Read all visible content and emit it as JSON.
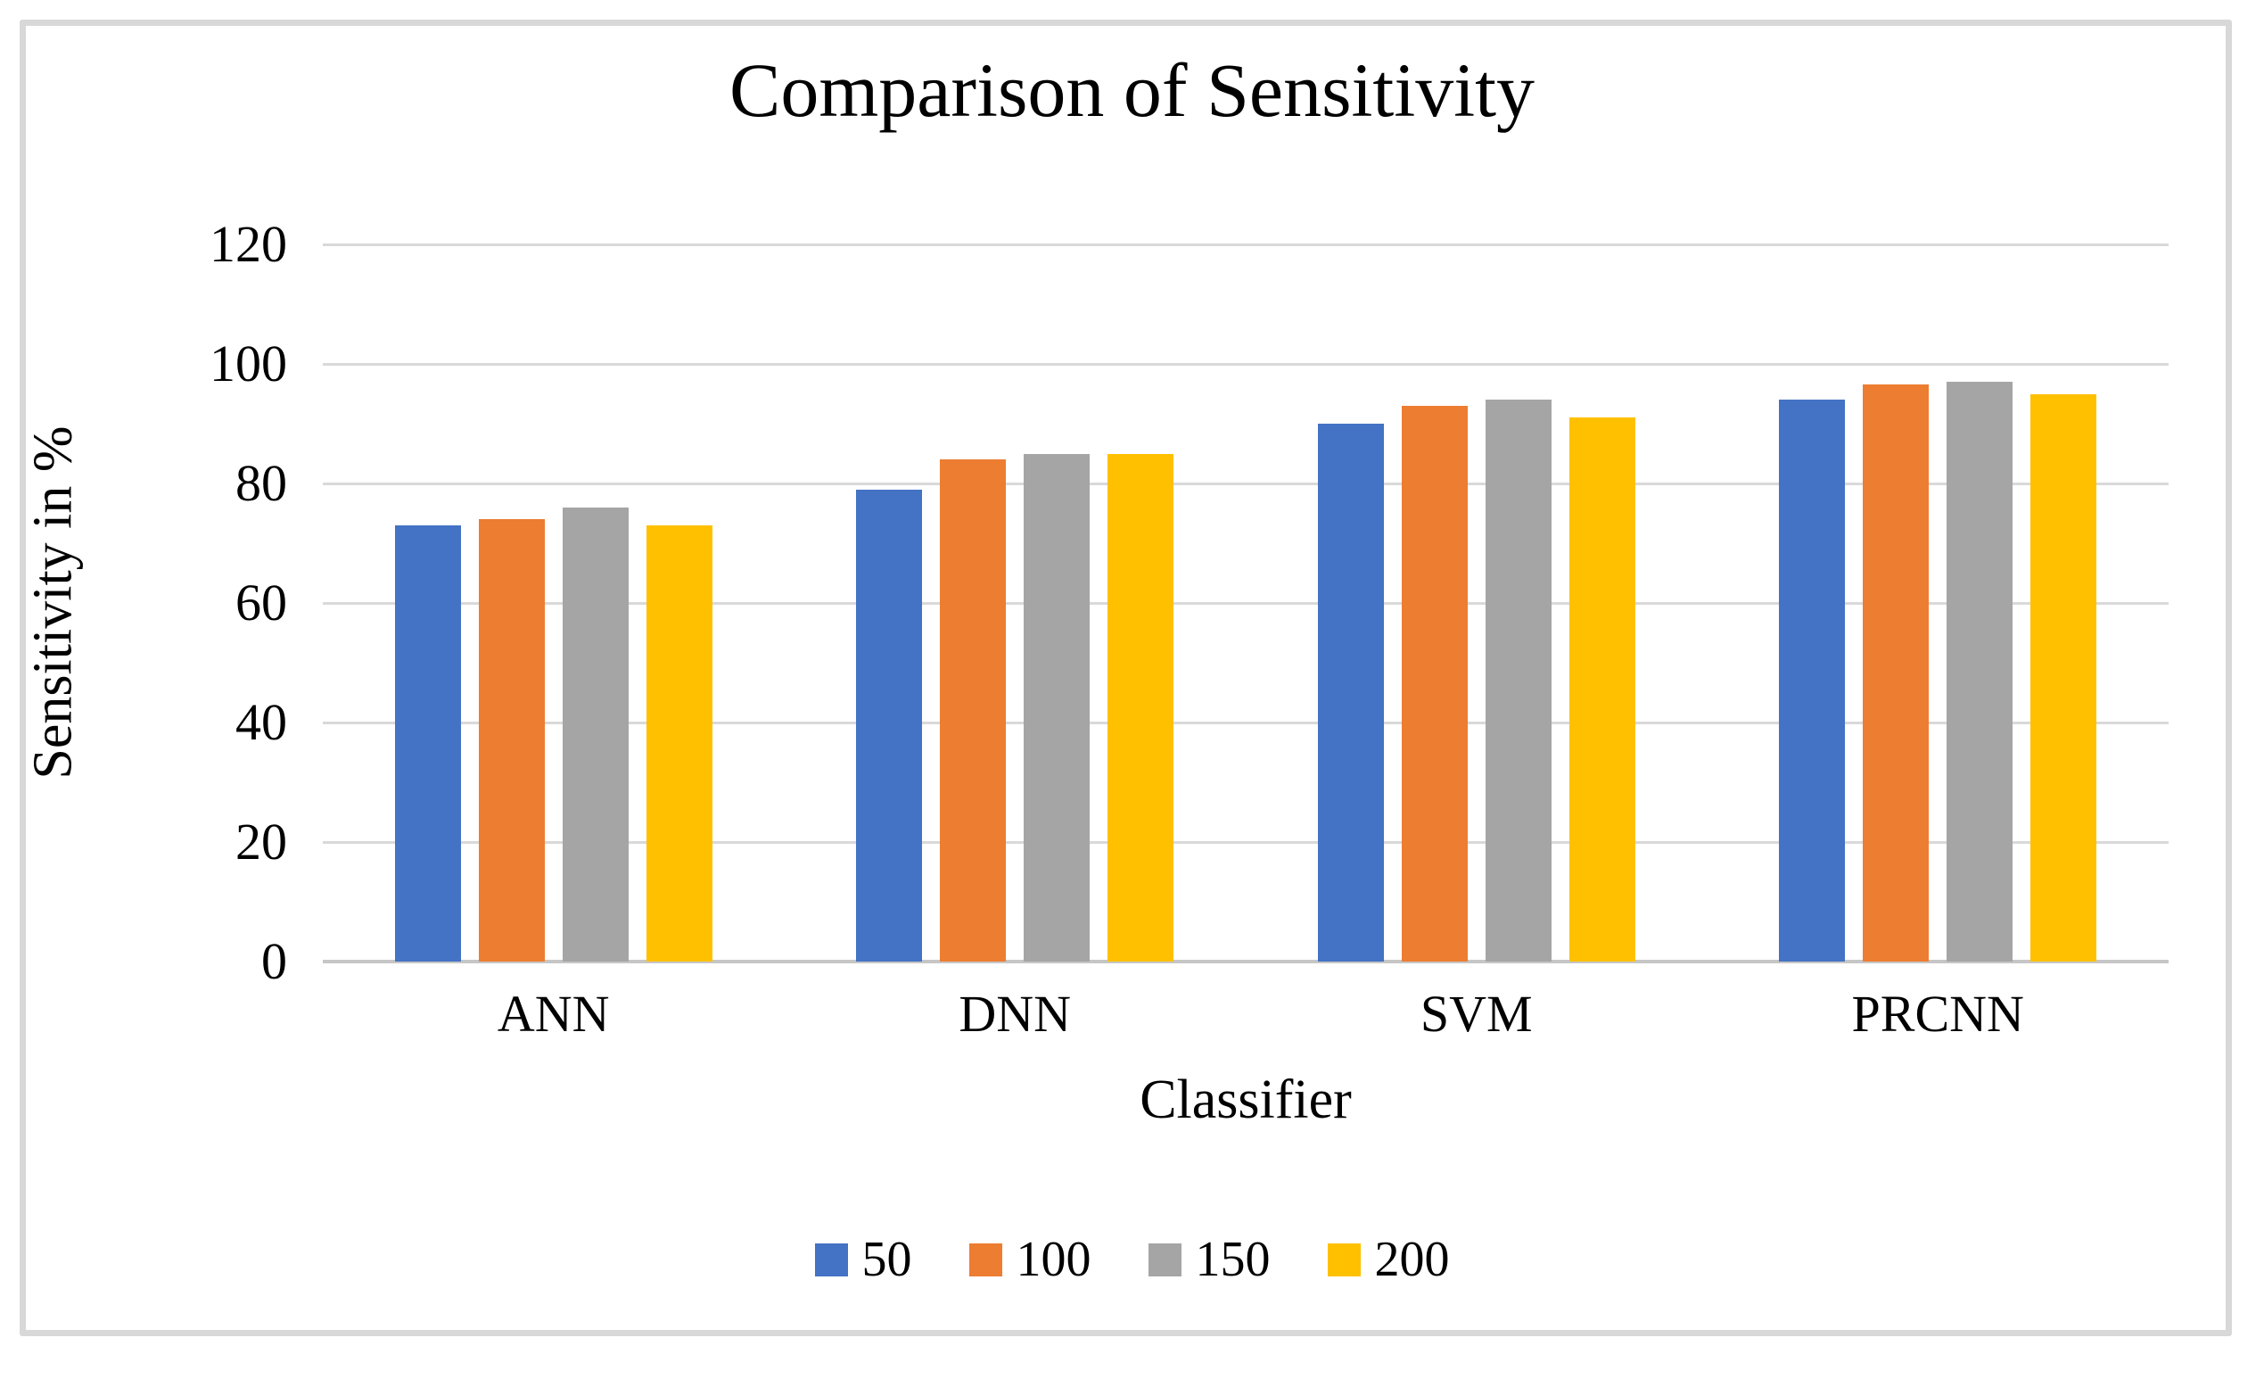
{
  "chart_data": {
    "type": "bar",
    "title": "Comparison of Sensitivity",
    "xlabel": "Classifier",
    "ylabel": "Sensitivity in %",
    "categories": [
      "ANN",
      "DNN",
      "SVM",
      "PRCNN"
    ],
    "series": [
      {
        "name": "50",
        "color": "#4472C4",
        "values": [
          73,
          79,
          90,
          94
        ]
      },
      {
        "name": "100",
        "color": "#ED7D31",
        "values": [
          74,
          84,
          93,
          96.5
        ]
      },
      {
        "name": "150",
        "color": "#A5A5A5",
        "values": [
          76,
          85,
          94,
          97
        ]
      },
      {
        "name": "200",
        "color": "#FFC000",
        "values": [
          73,
          85,
          91,
          95
        ]
      }
    ],
    "ylim": [
      0,
      120
    ],
    "yticks": [
      0,
      20,
      40,
      60,
      80,
      100,
      120
    ],
    "grid": true,
    "legend_position": "bottom",
    "gridline_color": "#D9D9D9",
    "axis_line_color": "#C6C6C6",
    "text_color": "#000000",
    "background": "#FFFFFF",
    "frame_border_color": "#D8D8D8"
  }
}
